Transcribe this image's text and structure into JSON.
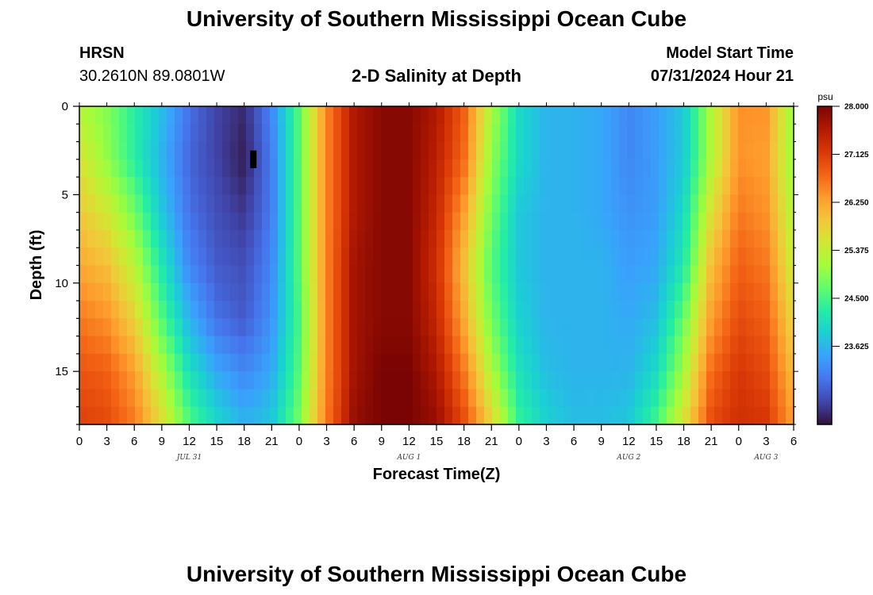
{
  "header": {
    "title": "University of Southern Mississippi Ocean Cube",
    "station_name": "HRSN",
    "station_coords": "30.2610N  89.0801W",
    "plot_title": "2-D Salinity at Depth",
    "run_label": "Model Start Time",
    "run_value": "07/31/2024 Hour 21"
  },
  "footer": {
    "title": "University of Southern Mississippi Ocean Cube"
  },
  "chart_data": {
    "type": "heatmap",
    "title": "2-D Salinity at Depth",
    "xlabel": "Forecast Time(Z)",
    "ylabel": "Depth (ft)",
    "x_ticks": [
      "0",
      "3",
      "6",
      "9",
      "12",
      "15",
      "18",
      "21",
      "0",
      "3",
      "6",
      "9",
      "12",
      "15",
      "18",
      "21",
      "0",
      "3",
      "6",
      "9",
      "12",
      "15",
      "18",
      "21",
      "0",
      "3",
      "6"
    ],
    "x_range_hours": [
      0,
      78
    ],
    "date_labels": [
      {
        "label": "JUL 31",
        "hour": 12
      },
      {
        "label": "AUG 1",
        "hour": 36
      },
      {
        "label": "AUG 2",
        "hour": 60
      },
      {
        "label": "AUG 3",
        "hour": 75
      }
    ],
    "y_ticks": [
      0,
      5,
      10,
      15
    ],
    "y_range_ft": [
      0,
      18
    ],
    "y_reversed": true,
    "colorbar": {
      "unit": "psu",
      "min": 22.2,
      "max": 28.0,
      "ticks": [
        "28.000",
        "27.125",
        "26.250",
        "25.375",
        "24.500",
        "23.625"
      ],
      "colors": [
        "#30123b",
        "#4145ab",
        "#4675ed",
        "#39a2fc",
        "#1bcfd4",
        "#24eca6",
        "#61fc6c",
        "#a4fc3b",
        "#d1e834",
        "#f3c63a",
        "#fe9b2d",
        "#f36315",
        "#d93806",
        "#b11901",
        "#7a0403"
      ]
    },
    "salinity_grid": {
      "x_hours": [
        0,
        3,
        6,
        9,
        12,
        15,
        18,
        21,
        24,
        27,
        30,
        33,
        36,
        39,
        42,
        45,
        48,
        51,
        54,
        57,
        60,
        63,
        66,
        69,
        72,
        75,
        78
      ],
      "depth_ft": [
        0,
        3,
        6,
        9,
        12,
        15,
        18
      ],
      "values_psu": [
        [
          25.2,
          24.9,
          24.3,
          23.7,
          23.0,
          22.6,
          22.4,
          23.2,
          24.6,
          26.5,
          27.6,
          27.9,
          27.9,
          27.6,
          26.8,
          25.2,
          24.0,
          23.6,
          23.6,
          23.5,
          23.2,
          23.4,
          23.8,
          25.2,
          26.4,
          26.4,
          25.0
        ],
        [
          25.6,
          25.0,
          24.3,
          23.6,
          22.9,
          22.6,
          22.3,
          23.1,
          24.6,
          26.5,
          27.6,
          27.9,
          27.9,
          27.5,
          26.7,
          25.0,
          24.0,
          23.6,
          23.6,
          23.5,
          23.2,
          23.4,
          23.8,
          25.2,
          26.4,
          26.3,
          25.0
        ],
        [
          25.9,
          25.5,
          24.8,
          23.8,
          23.0,
          22.7,
          22.5,
          23.1,
          24.6,
          26.5,
          27.6,
          27.9,
          27.9,
          27.4,
          26.3,
          24.8,
          23.8,
          23.6,
          23.6,
          23.5,
          23.3,
          23.4,
          24.0,
          25.6,
          26.6,
          26.4,
          25.2
        ],
        [
          26.2,
          26.0,
          25.3,
          24.2,
          23.2,
          22.8,
          22.7,
          23.2,
          24.6,
          26.5,
          27.7,
          27.9,
          27.9,
          27.3,
          26.0,
          24.6,
          23.8,
          23.6,
          23.6,
          23.6,
          23.4,
          23.5,
          24.2,
          26.0,
          26.8,
          26.6,
          25.4
        ],
        [
          26.6,
          26.4,
          25.8,
          24.6,
          23.6,
          23.0,
          22.8,
          23.3,
          24.5,
          26.5,
          27.7,
          27.9,
          27.9,
          27.4,
          26.2,
          24.8,
          23.9,
          23.6,
          23.6,
          23.6,
          23.5,
          23.7,
          24.7,
          26.3,
          27.0,
          26.8,
          25.7
        ],
        [
          26.9,
          26.8,
          26.3,
          25.2,
          24.1,
          23.5,
          23.2,
          23.5,
          24.6,
          26.5,
          27.7,
          28.0,
          28.0,
          27.6,
          26.6,
          25.2,
          24.1,
          23.7,
          23.6,
          23.6,
          23.6,
          24.0,
          25.1,
          26.7,
          27.2,
          27.0,
          26.0
        ],
        [
          27.1,
          27.0,
          26.6,
          25.7,
          24.6,
          24.0,
          23.6,
          23.8,
          24.8,
          26.6,
          27.8,
          28.0,
          28.0,
          27.8,
          27.0,
          25.8,
          24.4,
          23.9,
          23.7,
          23.7,
          23.8,
          24.5,
          25.6,
          27.0,
          27.3,
          27.2,
          26.3
        ]
      ]
    },
    "markers": [
      {
        "type": "black-bar",
        "hour": 19,
        "depth_ft_from": 2.5,
        "depth_ft_to": 3.5
      }
    ]
  }
}
